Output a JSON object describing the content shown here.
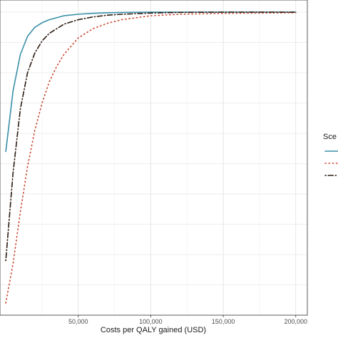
{
  "chart_data": {
    "type": "line",
    "title": "",
    "xlabel": "Costs per QALY gained (USD)",
    "ylabel": "",
    "x_ticks": [
      50000,
      100000,
      150000,
      200000
    ],
    "x_tick_labels": [
      "50,000",
      "100,000",
      "150,000",
      "200,000"
    ],
    "xlim": [
      -4000,
      208000
    ],
    "ylim": [
      0,
      1.04
    ],
    "y_gridlines": [
      0.1,
      0.2,
      0.3,
      0.4,
      0.5,
      0.6,
      0.7,
      0.8,
      0.9,
      1.0
    ],
    "grid": true,
    "legend_title": "Sce",
    "legend_position": "right",
    "series": [
      {
        "color": "#3a8fa8",
        "style": "solid",
        "x": [
          0,
          5000,
          10000,
          15000,
          20000,
          25000,
          30000,
          40000,
          50000,
          60000,
          70000,
          80000,
          100000,
          120000,
          150000,
          200000
        ],
        "y": [
          0.54,
          0.74,
          0.86,
          0.92,
          0.95,
          0.965,
          0.975,
          0.988,
          0.993,
          0.996,
          0.998,
          0.999,
          1.0,
          1.0,
          1.0,
          1.0
        ]
      },
      {
        "color": "#c8432a",
        "style": "dotted",
        "x": [
          0,
          5000,
          10000,
          15000,
          20000,
          25000,
          30000,
          35000,
          40000,
          50000,
          60000,
          70000,
          80000,
          100000,
          120000,
          150000,
          200000
        ],
        "y": [
          0.04,
          0.17,
          0.34,
          0.49,
          0.61,
          0.7,
          0.77,
          0.82,
          0.86,
          0.915,
          0.945,
          0.963,
          0.975,
          0.988,
          0.993,
          0.996,
          0.998
        ]
      },
      {
        "color": "#2b1a12",
        "style": "dotdash",
        "x": [
          0,
          5000,
          10000,
          15000,
          20000,
          25000,
          30000,
          40000,
          50000,
          60000,
          70000,
          80000,
          100000,
          120000,
          150000,
          200000
        ],
        "y": [
          0.18,
          0.47,
          0.68,
          0.8,
          0.865,
          0.905,
          0.93,
          0.96,
          0.975,
          0.984,
          0.99,
          0.993,
          0.997,
          0.999,
          1.0,
          1.0
        ]
      }
    ]
  }
}
